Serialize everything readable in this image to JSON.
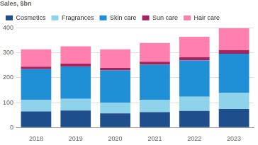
{
  "chart_data": {
    "type": "bar",
    "ylabel": "Sales, $bn",
    "categories": [
      "2018",
      "2019",
      "2020",
      "2021",
      "2022",
      "2023"
    ],
    "series": [
      {
        "name": "Cosmetics",
        "color": "#1f4e8c",
        "values": [
          65,
          68,
          57,
          62,
          67,
          75
        ]
      },
      {
        "name": "Fragrances",
        "color": "#8fd3ea",
        "values": [
          45,
          47,
          43,
          48,
          57,
          65
        ]
      },
      {
        "name": "Skin care",
        "color": "#1f8fd6",
        "values": [
          125,
          130,
          130,
          143,
          146,
          157
        ]
      },
      {
        "name": "Sun care",
        "color": "#a3245e",
        "values": [
          10,
          12,
          10,
          12,
          13,
          15
        ]
      },
      {
        "name": "Hair care",
        "color": "#ff80ae",
        "values": [
          70,
          70,
          75,
          75,
          82,
          88
        ]
      }
    ],
    "ylim": [
      0,
      400
    ],
    "yticks": [
      0,
      100,
      200,
      300,
      400
    ],
    "stacked": true,
    "grid": true,
    "legend": "top-left"
  }
}
